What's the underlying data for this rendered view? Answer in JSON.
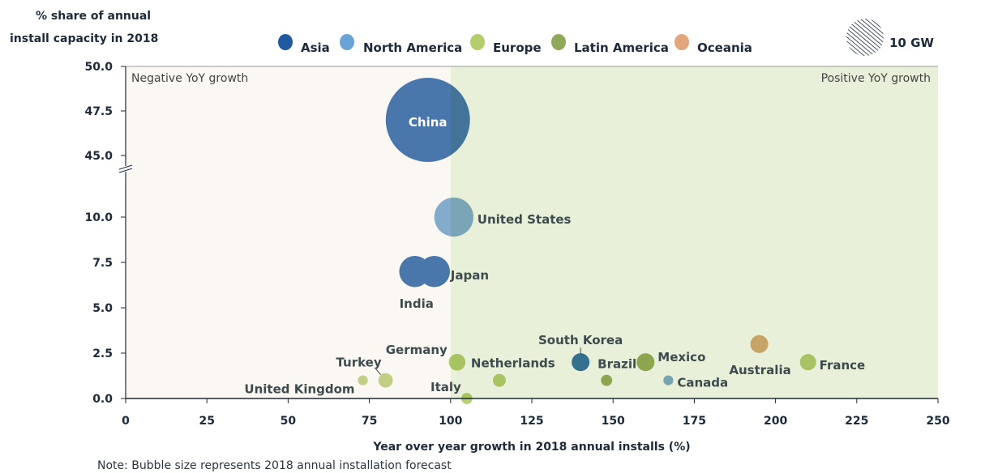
{
  "chart_data": {
    "type": "scatter",
    "subtype": "bubble",
    "ylabel": [
      "% share of annual",
      "install capacity in 2018"
    ],
    "xlabel": "Year over year growth in 2018 annual installs (%)",
    "note": "Note: Bubble size represents 2018 annual installation forecast",
    "xlim": [
      0,
      250
    ],
    "x_ticks": [
      "0",
      "25",
      "50",
      "75",
      "100",
      "125",
      "150",
      "175",
      "200",
      "225",
      "250"
    ],
    "ylim_lower": [
      0,
      10
    ],
    "ylim_upper": [
      45,
      50
    ],
    "y_axis_break": true,
    "y_ticks": [
      "0.0",
      "2.5",
      "5.0",
      "7.5",
      "10.0",
      "45.0",
      "47.5",
      "50.0"
    ],
    "regions": [
      {
        "label": "Negative YoY growth",
        "x_range": [
          0,
          100
        ],
        "color": "#fbf8f3"
      },
      {
        "label": "Positive YoY growth",
        "x_range": [
          100,
          250
        ],
        "color": "#e9f0d9"
      }
    ],
    "legend": {
      "placement": "top",
      "entries": [
        {
          "name": "Asia",
          "color": "#1f5aa0"
        },
        {
          "name": "North America",
          "color": "#6aa3d5"
        },
        {
          "name": "Europe",
          "color": "#b5cc6a"
        },
        {
          "name": "Latin America",
          "color": "#8fa85a"
        },
        {
          "name": "Oceania",
          "color": "#e2a57c"
        }
      ],
      "size_reference": {
        "label": "10 GW",
        "size_gw": 10
      }
    },
    "points": [
      {
        "name": "China",
        "region": "Asia",
        "x": 93,
        "y": 47.0,
        "size_gw": 51,
        "color": "#4a7ab4"
      },
      {
        "name": "United States",
        "region": "North America",
        "x": 101,
        "y": 10.0,
        "size_gw": 11,
        "color": "#84b0d6"
      },
      {
        "name": "India",
        "region": "Asia",
        "x": 89,
        "y": 7.0,
        "size_gw": 7,
        "color": "#4a7ab4"
      },
      {
        "name": "Japan",
        "region": "Asia",
        "x": 95,
        "y": 7.0,
        "size_gw": 7,
        "color": "#4a7ab4"
      },
      {
        "name": "Germany",
        "region": "Europe",
        "x": 102,
        "y": 2.0,
        "size_gw": 2,
        "color": "#b8cf73"
      },
      {
        "name": "Turkey",
        "region": "Europe",
        "x": 80,
        "y": 1.0,
        "size_gw": 1.5,
        "color": "#c4d48a"
      },
      {
        "name": "United Kingdom",
        "region": "Europe",
        "x": 73,
        "y": 1.0,
        "size_gw": 0.7,
        "color": "#c4d48a"
      },
      {
        "name": "Italy",
        "region": "Europe",
        "x": 105,
        "y": 0.0,
        "size_gw": 0.9,
        "color": "#b8cf73"
      },
      {
        "name": "Netherlands",
        "region": "Europe",
        "x": 115,
        "y": 1.0,
        "size_gw": 1.2,
        "color": "#b8cf73"
      },
      {
        "name": "South Korea",
        "region": "Asia",
        "x": 140,
        "y": 2.0,
        "size_gw": 2.3,
        "color": "#3a78a8"
      },
      {
        "name": "Brazil",
        "region": "Latin America",
        "x": 148,
        "y": 1.0,
        "size_gw": 0.9,
        "color": "#9cb05e"
      },
      {
        "name": "Mexico",
        "region": "Latin America",
        "x": 160,
        "y": 2.0,
        "size_gw": 2.3,
        "color": "#9cb05e"
      },
      {
        "name": "Canada",
        "region": "North America",
        "x": 167,
        "y": 1.0,
        "size_gw": 0.7,
        "color": "#7fb0cf"
      },
      {
        "name": "Australia",
        "region": "Oceania",
        "x": 195,
        "y": 3.0,
        "size_gw": 2.3,
        "color": "#d9ad78"
      },
      {
        "name": "France",
        "region": "Europe",
        "x": 210,
        "y": 2.0,
        "size_gw": 1.9,
        "color": "#b8cf73"
      }
    ]
  }
}
